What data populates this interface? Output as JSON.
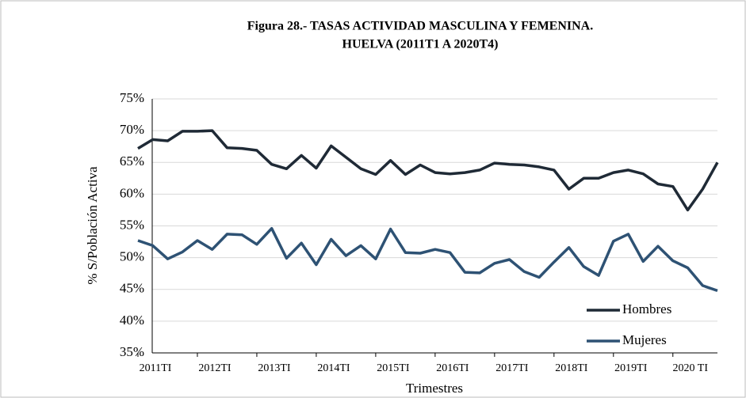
{
  "chart_data": {
    "type": "line",
    "title": "Figura 28.- TASAS ACTIVIDAD MASCULINA Y FEMENINA.",
    "subtitle": "HUELVA (2011T1 A 2020T4)",
    "x_label": "Trimestres",
    "y_label": "% S/Población Activa",
    "categories": [
      "2011TI",
      null,
      null,
      null,
      "2012TI",
      null,
      null,
      null,
      "2013TI",
      null,
      null,
      null,
      "2014TI",
      null,
      null,
      null,
      "2015TI",
      null,
      null,
      null,
      "2016TI",
      null,
      null,
      null,
      "2017TI",
      null,
      null,
      null,
      "2018TI",
      null,
      null,
      null,
      "2019TI",
      null,
      null,
      null,
      "2020 TI",
      null,
      null,
      null
    ],
    "series": [
      {
        "name": "Hombres",
        "color": "#1f2a36",
        "values": [
          67.2,
          68.6,
          68.4,
          69.9,
          69.9,
          70.0,
          67.3,
          67.2,
          66.9,
          64.7,
          64.0,
          66.1,
          64.1,
          67.6,
          65.8,
          64.0,
          63.1,
          65.3,
          63.1,
          64.6,
          63.4,
          63.2,
          63.4,
          63.8,
          64.9,
          64.7,
          64.6,
          64.3,
          63.8,
          60.8,
          62.5,
          62.5,
          63.4,
          63.8,
          63.2,
          61.6,
          61.2,
          57.5,
          60.8,
          65.0
        ]
      },
      {
        "name": "Mujeres",
        "color": "#2e5274",
        "values": [
          52.7,
          51.9,
          49.8,
          50.9,
          52.7,
          51.3,
          53.7,
          53.6,
          52.1,
          54.6,
          49.9,
          52.3,
          48.9,
          52.9,
          50.3,
          51.9,
          49.8,
          54.5,
          50.8,
          50.7,
          51.3,
          50.8,
          47.7,
          47.6,
          49.1,
          49.7,
          47.8,
          46.9,
          49.3,
          51.6,
          48.6,
          47.2,
          52.6,
          53.7,
          49.4,
          51.8,
          49.5,
          48.4,
          45.6,
          44.8
        ]
      }
    ],
    "ylim": [
      35,
      75
    ],
    "yticks": [
      {
        "value": 35,
        "label": "35%"
      },
      {
        "value": 40,
        "label": "40%"
      },
      {
        "value": 45,
        "label": "45%"
      },
      {
        "value": 50,
        "label": "50%"
      },
      {
        "value": 55,
        "label": "55%"
      },
      {
        "value": 60,
        "label": "60%"
      },
      {
        "value": 65,
        "label": "65%"
      },
      {
        "value": 70,
        "label": "70%"
      },
      {
        "value": 75,
        "label": "75%"
      }
    ],
    "grid": true,
    "legend": "lower right"
  }
}
